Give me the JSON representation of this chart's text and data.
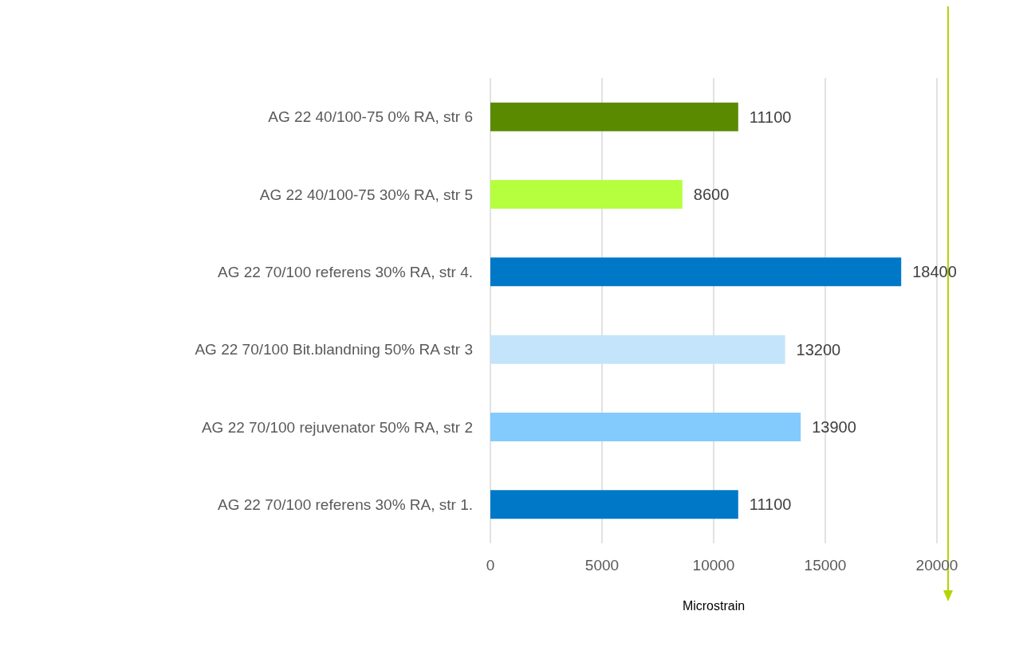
{
  "chart_data": {
    "type": "bar",
    "orientation": "horizontal",
    "xlabel": "Microstrain",
    "categories": [
      "AG 22 40/100-75 0% RA, str 6",
      "AG 22 40/100-75 30% RA, str 5",
      "AG 22 70/100 referens 30% RA, str 4.",
      "AG 22 70/100 Bit.blandning 50% RA str 3",
      "AG 22 70/100 rejuvenator 50% RA, str 2",
      "AG 22 70/100 referens 30% RA, str 1."
    ],
    "values": [
      11100,
      8600,
      18400,
      13200,
      13900,
      11100
    ],
    "colors": [
      "#5a8a00",
      "#b5ff3f",
      "#0078c8",
      "#c3e4fb",
      "#83cbfc",
      "#0078c8"
    ],
    "xlim": [
      0,
      20000
    ],
    "xticks": [
      0,
      5000,
      10000,
      15000,
      20000
    ],
    "grid": "x",
    "data_labels": true,
    "ref_lines": [
      {
        "axis": "x",
        "value": 20500,
        "color": "#b5d400"
      }
    ]
  }
}
